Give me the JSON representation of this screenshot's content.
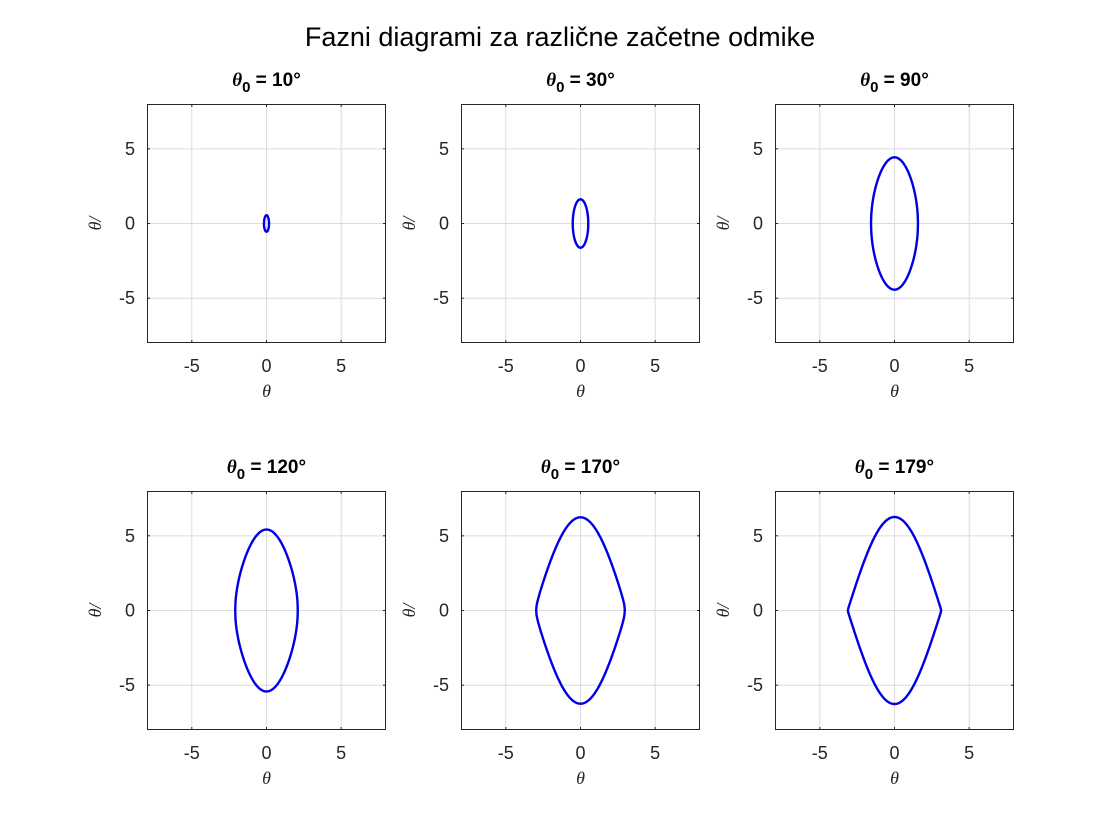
{
  "figure_title": "Fazni diagrami za različne začetne odmike",
  "colors": {
    "series": "#0000e6",
    "axes": "#262626",
    "grid": "#dcdcdc"
  },
  "chart_data": [
    {
      "type": "line",
      "title_symbol": "θ",
      "title_subscript": "0",
      "title_value": " = 10°",
      "theta0_deg": 10,
      "xlabel": "θ",
      "ylabel": "θ/",
      "xlim": [
        -8,
        8
      ],
      "ylim": [
        -8,
        8
      ],
      "xticks": [
        -5,
        0,
        5
      ],
      "yticks": [
        -5,
        0,
        5
      ],
      "xtick_labels": [
        "-5",
        "0",
        "5"
      ],
      "ytick_labels": [
        "5",
        "0",
        "-5"
      ],
      "grid": true,
      "series": [
        {
          "theta_max": 0.17,
          "omega_max": 0.55
        }
      ]
    },
    {
      "type": "line",
      "title_symbol": "θ",
      "title_subscript": "0",
      "title_value": " = 30°",
      "theta0_deg": 30,
      "xlabel": "θ",
      "ylabel": "θ/",
      "xlim": [
        -8,
        8
      ],
      "ylim": [
        -8,
        8
      ],
      "xticks": [
        -5,
        0,
        5
      ],
      "yticks": [
        -5,
        0,
        5
      ],
      "xtick_labels": [
        "-5",
        "0",
        "5"
      ],
      "ytick_labels": [
        "5",
        "0",
        "-5"
      ],
      "grid": true,
      "series": [
        {
          "theta_max": 0.52,
          "omega_max": 1.62
        }
      ]
    },
    {
      "type": "line",
      "title_symbol": "θ",
      "title_subscript": "0",
      "title_value": " = 90°",
      "theta0_deg": 90,
      "xlabel": "θ",
      "ylabel": "θ/",
      "xlim": [
        -8,
        8
      ],
      "ylim": [
        -8,
        8
      ],
      "xticks": [
        -5,
        0,
        5
      ],
      "yticks": [
        -5,
        0,
        5
      ],
      "xtick_labels": [
        "-5",
        "0",
        "5"
      ],
      "ytick_labels": [
        "5",
        "0",
        "-5"
      ],
      "grid": true,
      "series": [
        {
          "theta_max": 1.571,
          "omega_max": 4.43
        }
      ]
    },
    {
      "type": "line",
      "title_symbol": "θ",
      "title_subscript": "0",
      "title_value": " = 120°",
      "theta0_deg": 120,
      "xlabel": "θ",
      "ylabel": "θ/",
      "xlim": [
        -8,
        8
      ],
      "ylim": [
        -8,
        8
      ],
      "xticks": [
        -5,
        0,
        5
      ],
      "yticks": [
        -5,
        0,
        5
      ],
      "xtick_labels": [
        "-5",
        "0",
        "5"
      ],
      "ytick_labels": [
        "5",
        "0",
        "-5"
      ],
      "grid": true,
      "series": [
        {
          "theta_max": 2.094,
          "omega_max": 5.42
        }
      ]
    },
    {
      "type": "line",
      "title_symbol": "θ",
      "title_subscript": "0",
      "title_value": " = 170°",
      "theta0_deg": 170,
      "xlabel": "θ",
      "ylabel": "θ/",
      "xlim": [
        -8,
        8
      ],
      "ylim": [
        -8,
        8
      ],
      "xticks": [
        -5,
        0,
        5
      ],
      "yticks": [
        -5,
        0,
        5
      ],
      "xtick_labels": [
        "-5",
        "0",
        "5"
      ],
      "ytick_labels": [
        "5",
        "0",
        "-5"
      ],
      "grid": true,
      "series": [
        {
          "theta_max": 2.967,
          "omega_max": 6.24
        }
      ]
    },
    {
      "type": "line",
      "title_symbol": "θ",
      "title_subscript": "0",
      "title_value": " = 179°",
      "theta0_deg": 179,
      "xlabel": "θ",
      "ylabel": "θ/",
      "xlim": [
        -8,
        8
      ],
      "ylim": [
        -8,
        8
      ],
      "xticks": [
        -5,
        0,
        5
      ],
      "yticks": [
        -5,
        0,
        5
      ],
      "xtick_labels": [
        "-5",
        "0",
        "5"
      ],
      "ytick_labels": [
        "5",
        "0",
        "-5"
      ],
      "grid": true,
      "series": [
        {
          "theta_max": 3.124,
          "omega_max": 6.26
        }
      ]
    }
  ]
}
